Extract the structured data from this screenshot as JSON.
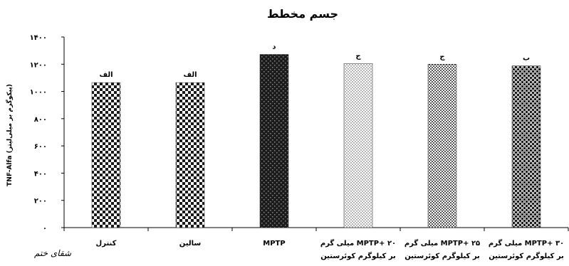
{
  "chart_data": {
    "type": "bar",
    "title": "جسم مخطط",
    "ylabel": "TNF-Alfa (پیکوگرم بر میلی‌لیتر)",
    "ylim": [
      0,
      1400
    ],
    "yticks": [
      "۰",
      "۲۰۰",
      "۴۰۰",
      "۶۰۰",
      "۸۰۰",
      "۱۰۰۰",
      "۱۲۰۰",
      "۱۴۰۰"
    ],
    "ytick_values": [
      0,
      200,
      400,
      600,
      800,
      1000,
      1200,
      1400
    ],
    "categories": [
      [
        "کنترل"
      ],
      [
        "سالین"
      ],
      [
        "MPTP"
      ],
      [
        "MPTP+ ۲۰ میلی گرم",
        "بر کیلوگرم کوئرستین"
      ],
      [
        "MPTP+ ۲۵ میلی گرم",
        "بر کیلوگرم کوئرستین"
      ],
      [
        "MPTP+ ۳۰ میلی گرم",
        "بر کیلوگرم کوئرستین"
      ]
    ],
    "values": [
      1065,
      1065,
      1272,
      1205,
      1200,
      1188
    ],
    "bar_labels": [
      "الف",
      "الف",
      "د",
      "ج",
      "ج",
      "ب"
    ],
    "patterns": [
      "checker",
      "checker",
      "dark",
      "fine-dots",
      "med-dots",
      "weave"
    ],
    "grid": false,
    "legend": "none"
  },
  "signature": "شقای ختم"
}
